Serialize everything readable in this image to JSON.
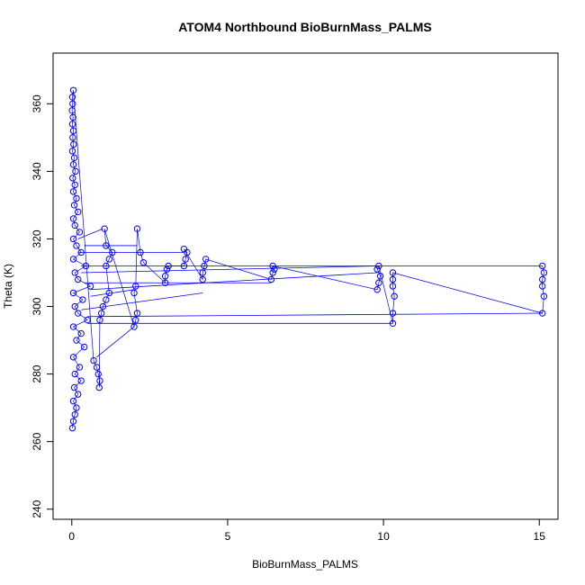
{
  "chart_data": {
    "type": "scatter",
    "title": "ATOM4 Northbound BioBurnMass_PALMS",
    "xlabel": "BioBurnMass_PALMS",
    "ylabel": "Theta (K)",
    "xlim": [
      -0.6,
      15.6
    ],
    "ylim": [
      237,
      375
    ],
    "x_ticks": [
      0,
      5,
      10,
      15
    ],
    "y_ticks": [
      240,
      260,
      280,
      300,
      320,
      340,
      360
    ],
    "x_tick_labels": [
      "0",
      "5",
      "10",
      "15"
    ],
    "y_tick_labels": [
      "240",
      "260",
      "280",
      "300",
      "320",
      "340",
      "360"
    ],
    "grid": false,
    "legend": "none",
    "marker": "open-circle",
    "connect_points": true,
    "color": "#0000ff",
    "series": [
      {
        "values_note_free": true,
        "points": [
          [
            0.02,
            264
          ],
          [
            0.05,
            266
          ],
          [
            0.1,
            268
          ],
          [
            0.15,
            270
          ],
          [
            0.05,
            272
          ],
          [
            0.2,
            274
          ],
          [
            0.08,
            276
          ],
          [
            0.3,
            278
          ],
          [
            0.1,
            280
          ],
          [
            0.25,
            282
          ],
          [
            0.05,
            285
          ],
          [
            0.4,
            288
          ],
          [
            0.15,
            290
          ],
          [
            0.3,
            292
          ],
          [
            0.05,
            294
          ],
          [
            0.5,
            296
          ],
          [
            0.2,
            298
          ],
          [
            0.1,
            300
          ],
          [
            0.35,
            302
          ],
          [
            0.05,
            304
          ],
          [
            0.6,
            306
          ],
          [
            0.2,
            308
          ],
          [
            0.1,
            310
          ],
          [
            0.45,
            312
          ],
          [
            0.05,
            314
          ],
          [
            0.3,
            316
          ],
          [
            0.15,
            318
          ],
          [
            0.05,
            320
          ],
          [
            0.25,
            322
          ],
          [
            0.1,
            324
          ],
          [
            0.05,
            326
          ],
          [
            0.2,
            328
          ],
          [
            0.08,
            330
          ],
          [
            0.15,
            332
          ],
          [
            0.05,
            334
          ],
          [
            0.1,
            336
          ],
          [
            0.03,
            338
          ],
          [
            0.12,
            340
          ],
          [
            0.05,
            342
          ],
          [
            0.08,
            344
          ],
          [
            0.02,
            346
          ],
          [
            0.06,
            348
          ],
          [
            0.03,
            350
          ],
          [
            0.05,
            352
          ],
          [
            0.02,
            354
          ],
          [
            0.04,
            356
          ],
          [
            0.01,
            358
          ],
          [
            0.03,
            360
          ],
          [
            0.02,
            362
          ],
          [
            0.05,
            364
          ],
          [
            0.7,
            284
          ],
          [
            0.8,
            282
          ],
          [
            0.85,
            280
          ],
          [
            0.9,
            278
          ],
          [
            0.88,
            276
          ],
          [
            0.9,
            296
          ],
          [
            0.95,
            298
          ],
          [
            1.0,
            300
          ],
          [
            1.1,
            302
          ],
          [
            1.2,
            304
          ],
          [
            1.1,
            312
          ],
          [
            1.2,
            314
          ],
          [
            1.3,
            316
          ],
          [
            1.1,
            318
          ],
          [
            1.05,
            323
          ],
          [
            2.0,
            294
          ],
          [
            2.05,
            296
          ],
          [
            2.1,
            298
          ],
          [
            2.0,
            304
          ],
          [
            2.05,
            306
          ],
          [
            2.1,
            323
          ],
          [
            2.2,
            316
          ],
          [
            2.3,
            313
          ],
          [
            3.0,
            307
          ],
          [
            3.0,
            309
          ],
          [
            3.05,
            311
          ],
          [
            3.1,
            312
          ],
          [
            3.6,
            312
          ],
          [
            3.65,
            314
          ],
          [
            3.7,
            316
          ],
          [
            3.6,
            317
          ],
          [
            4.2,
            308
          ],
          [
            4.2,
            310
          ],
          [
            4.25,
            312
          ],
          [
            4.3,
            314
          ],
          [
            6.4,
            308
          ],
          [
            6.45,
            310
          ],
          [
            6.5,
            311
          ],
          [
            6.45,
            312
          ],
          [
            9.8,
            305
          ],
          [
            9.85,
            307
          ],
          [
            9.9,
            309
          ],
          [
            9.8,
            311
          ],
          [
            9.85,
            312
          ],
          [
            10.3,
            295
          ],
          [
            10.3,
            298
          ],
          [
            10.35,
            303
          ],
          [
            10.3,
            306
          ],
          [
            10.3,
            308
          ],
          [
            10.3,
            310
          ],
          [
            15.1,
            298
          ],
          [
            15.15,
            303
          ],
          [
            15.1,
            306
          ],
          [
            15.1,
            308
          ],
          [
            15.15,
            310
          ],
          [
            15.1,
            312
          ]
        ]
      }
    ],
    "connections": [
      [
        0.3,
        312,
        15.1,
        312
      ],
      [
        0.5,
        295,
        10.3,
        295
      ],
      [
        0.5,
        297,
        15.1,
        298
      ],
      [
        0.4,
        307,
        6.4,
        307
      ],
      [
        0.3,
        299,
        4.2,
        304
      ],
      [
        0.2,
        316,
        3.6,
        316
      ],
      [
        0.6,
        305,
        9.8,
        310
      ],
      [
        0.8,
        285,
        2.0,
        294
      ],
      [
        0.4,
        318,
        2.1,
        318
      ],
      [
        0.6,
        303,
        2.0,
        305
      ],
      [
        0.2,
        320,
        1.0,
        323
      ],
      [
        0.3,
        310,
        9.85,
        312
      ]
    ]
  }
}
